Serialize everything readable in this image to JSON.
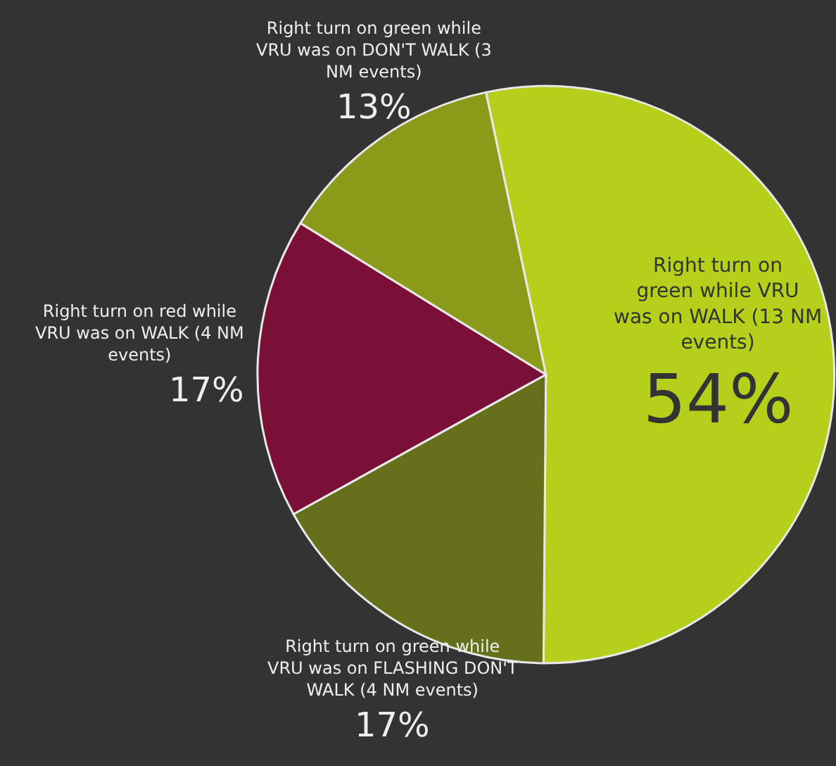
{
  "chart_data": {
    "type": "pie",
    "categories": [
      "Right turn on green while VRU was on WALK (13 NM events)",
      "Right turn on green while VRU was on FLASHING DON'T WALK (4 NM events)",
      "Right turn on red while VRU was on WALK (4 NM events)",
      "Right turn on green while VRU was on DON'T WALK (3 NM events)"
    ],
    "values": [
      54,
      17,
      17,
      13
    ],
    "value_labels": [
      "54%",
      "17%",
      "17%",
      "13%"
    ],
    "colors": [
      "#b5cf1a",
      "#66701a",
      "#7a1038",
      "#8c9a1a"
    ],
    "legend": false
  }
}
